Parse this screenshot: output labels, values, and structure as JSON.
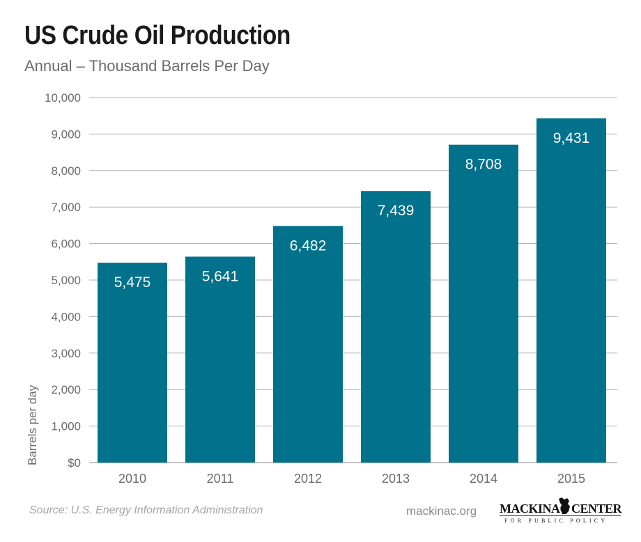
{
  "header": {
    "title": "US Crude Oil Production",
    "subtitle": "Annual – Thousand Barrels Per Day"
  },
  "footer": {
    "source": "Source: U.S. Energy Information Administration",
    "site": "mackinac.org",
    "logo_text_main": "MACKINAC CENTER",
    "logo_text_sub": "FOR PUBLIC POLICY",
    "logo_icon": "michigan-map-icon"
  },
  "colors": {
    "bar": "#02718c",
    "grid": "#b0b0b0",
    "axis_text": "#6b6b6b"
  },
  "chart_data": {
    "type": "bar",
    "categories": [
      "2010",
      "2011",
      "2012",
      "2013",
      "2014",
      "2015"
    ],
    "values": [
      5475,
      5641,
      6482,
      7439,
      8708,
      9431
    ],
    "data_labels": [
      "5,475",
      "5,641",
      "6,482",
      "7,439",
      "8,708",
      "9,431"
    ],
    "title": "US Crude Oil Production",
    "subtitle": "Annual – Thousand Barrels Per Day",
    "xlabel": "",
    "ylabel": "Barrels per day",
    "ylim": [
      0,
      10000
    ],
    "yticks": [
      0,
      1000,
      2000,
      3000,
      4000,
      5000,
      6000,
      7000,
      8000,
      9000,
      10000
    ],
    "ytick_labels": [
      "$0",
      "1,000",
      "2,000",
      "3,000",
      "4,000",
      "5,000",
      "6,000",
      "7,000",
      "8,000",
      "9,000",
      "10,000"
    ],
    "grid": true,
    "legend": "none"
  }
}
